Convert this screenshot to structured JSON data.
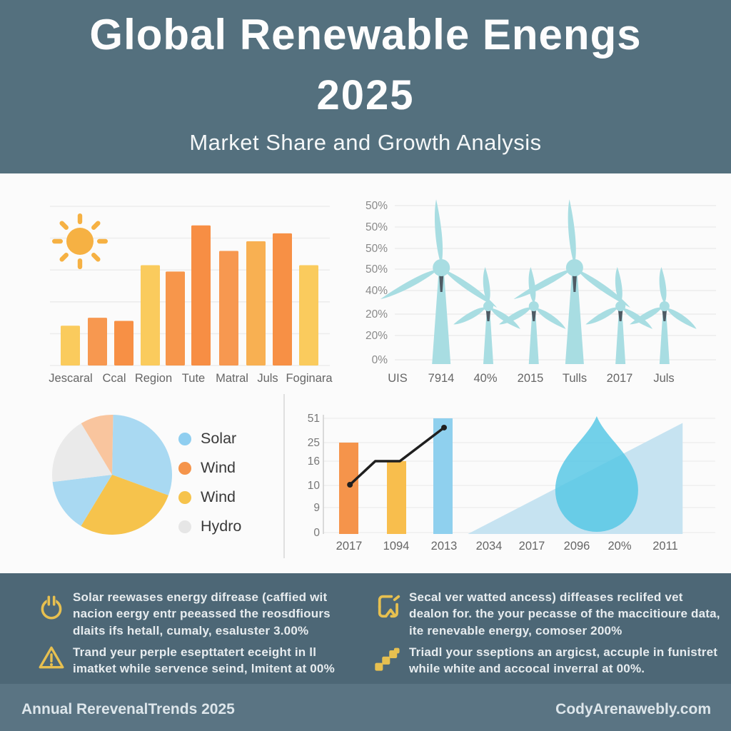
{
  "header": {
    "title_line1": "Global Renewable Enengs",
    "title_line2": "2025",
    "subtitle": "Market Share and Growth Analysis"
  },
  "chart_data": [
    {
      "type": "bar",
      "icon": "sun",
      "categories": [
        "Jescaral",
        "Ccal",
        "Region",
        "Tute",
        "Matral",
        "Juls",
        "Foginara"
      ],
      "values": [
        25,
        30,
        28,
        63,
        59,
        88,
        72,
        78,
        83,
        63
      ],
      "bar_colors": [
        "#FACB5D",
        "#F79850",
        "#F79045",
        "#FACB5D",
        "#F7964B",
        "#F78E44",
        "#F79850",
        "#F8B052",
        "#F79045",
        "#FACB5D"
      ],
      "ylim": [
        0,
        100
      ],
      "grid": true,
      "note": "10 bars share 7 visible x-axis labels"
    },
    {
      "type": "pictorial",
      "subtype": "wind-turbines",
      "y_ticks": [
        "50%",
        "50%",
        "50%",
        "50%",
        "40%",
        "20%",
        "20%",
        "0%"
      ],
      "x_ticks": [
        "UIS",
        "7914",
        "40%",
        "2015",
        "Tulls",
        "2017",
        "Juls"
      ],
      "turbines": [
        {
          "x_frac": 0.222,
          "size": "large"
        },
        {
          "x_frac": 0.351,
          "size": "small"
        },
        {
          "x_frac": 0.476,
          "size": "small"
        },
        {
          "x_frac": 0.588,
          "size": "large"
        },
        {
          "x_frac": 0.714,
          "size": "small"
        },
        {
          "x_frac": 0.835,
          "size": "small"
        }
      ],
      "turbine_color": "#A8DDE2",
      "nacelle_color": "#4F5B64",
      "grid": true
    },
    {
      "type": "pie",
      "slices": [
        {
          "label": "Solar",
          "value": 30.3,
          "color": "#A9D9F2"
        },
        {
          "label": "Wind",
          "value": 28.1,
          "color": "#F6C34C"
        },
        {
          "label": "Solar",
          "value": 14.4,
          "color": "#A9D9F2"
        },
        {
          "label": "Hydro",
          "value": 18.3,
          "color": "#EAEAEA"
        },
        {
          "label": "Wind",
          "value": 8.9,
          "color": "#F9C59E"
        }
      ],
      "legend": [
        {
          "label": "Solar",
          "color": "#8FCEF0"
        },
        {
          "label": "Wind",
          "color": "#F5944B"
        },
        {
          "label": "Wind",
          "color": "#F6C34C"
        },
        {
          "label": "Hydro",
          "color": "#E6E6E6"
        }
      ],
      "legend_position": "right"
    },
    {
      "type": "combo",
      "y_ticks": [
        "51",
        "25",
        "16",
        "10",
        "9",
        "0"
      ],
      "x_ticks": [
        "2017",
        "1094",
        "2013",
        "2034",
        "2017",
        "2096",
        "20%",
        "2011"
      ],
      "bars": [
        {
          "label": "2017",
          "value": 25,
          "height_frac": 0.79,
          "color": "#F5944B"
        },
        {
          "label": "1094",
          "value": 16,
          "height_frac": 0.63,
          "color": "#F8BE4D"
        },
        {
          "label": "2013",
          "value": 51,
          "height_frac": 1.0,
          "color": "#8FD0EE"
        }
      ],
      "line": {
        "color": "#1F1F1F",
        "points_frac": [
          [
            0.068,
            0.426
          ],
          [
            0.133,
            0.63
          ],
          [
            0.196,
            0.63
          ],
          [
            0.309,
            0.92
          ]
        ]
      },
      "area_triangle": {
        "color": "#C3E1F0",
        "x_start_frac": 0.37,
        "x_end_frac": 0.92,
        "peak_frac": 0.96
      },
      "water_drop": {
        "color": "#50C6E5",
        "center_x_frac": 0.7
      },
      "grid": true
    }
  ],
  "notes": {
    "icon_color": "#E7C050",
    "items": [
      {
        "icon": "power-icon",
        "text": "Solar reewases energy difrease (caffied wit nacion eergy entr peeassed the reosdfiours dlaits ifs hetall, cumaly, esaluster 3.00%"
      },
      {
        "icon": "warning-icon",
        "text": "Trand yeur perple esepttatert eceight in ll imatket while servence seind, lmitent at 00%"
      },
      {
        "icon": "bookmark-icon",
        "text": "Secal ver watted ancess) diffeases reclifed vet dealon for. the your pecasse of the maccitioure data, ite renevable energy, comoser 200%"
      },
      {
        "icon": "stairs-icon",
        "text": "Triadl your sseptions an argicst, accuple in funistret while white and accocal inverral at 00%."
      }
    ]
  },
  "footer": {
    "left": "Annual RerevenalTrends 2025",
    "right": "CodyArenawebly.com"
  },
  "colors": {
    "header_bg": "#54707E",
    "panel_bg": "#FBFBFB",
    "notes_bg": "#4D6776",
    "footer_bg": "#5A7483",
    "accent_gold": "#E7C050",
    "sun": "#F6B143",
    "turbine": "#A8DDE2"
  }
}
